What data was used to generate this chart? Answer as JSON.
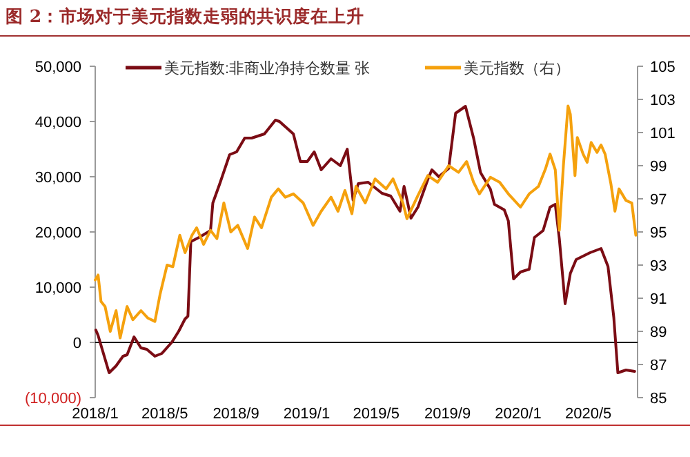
{
  "chart_data": {
    "type": "line",
    "title": "图 2：市场对于美元指数走弱的共识度在上升",
    "xlim": [
      "2018-01-01",
      "2020-07-25"
    ],
    "xticks": [
      {
        "value": "2018-01",
        "label": "2018/1"
      },
      {
        "value": "2018-05",
        "label": "2018/5"
      },
      {
        "value": "2018-09",
        "label": "2018/9"
      },
      {
        "value": "2019-01",
        "label": "2019/1"
      },
      {
        "value": "2019-05",
        "label": "2019/5"
      },
      {
        "value": "2019-09",
        "label": "2019/9"
      },
      {
        "value": "2020-01",
        "label": "2020/1"
      },
      {
        "value": "2020-05",
        "label": "2020/5"
      }
    ],
    "ylim": [
      -10000,
      50000
    ],
    "yticks": [
      {
        "value": -10000,
        "label": "(10,000)"
      },
      {
        "value": 0,
        "label": "0"
      },
      {
        "value": 10000,
        "label": "10,000"
      },
      {
        "value": 20000,
        "label": "20,000"
      },
      {
        "value": 30000,
        "label": "30,000"
      },
      {
        "value": 40000,
        "label": "40,000"
      },
      {
        "value": 50000,
        "label": "50,000"
      }
    ],
    "y2lim": [
      85,
      105
    ],
    "y2ticks": [
      85,
      87,
      89,
      91,
      93,
      95,
      97,
      99,
      101,
      103,
      105
    ],
    "grid": false,
    "legend": "top",
    "marker": "none",
    "line_style": "solid",
    "ref_lines": [
      {
        "axis": "y",
        "value": 0,
        "color": "#000000"
      }
    ],
    "series": [
      {
        "name": "美元指数:非商业净持仓数量 张",
        "color": "#7b0c14",
        "x": [
          "2018-01-02",
          "2018-01-06",
          "2018-01-25",
          "2018-02-06",
          "2018-02-18",
          "2018-02-25",
          "2018-03-09",
          "2018-03-21",
          "2018-03-31",
          "2018-04-14",
          "2018-04-26",
          "2018-05-13",
          "2018-05-25",
          "2018-06-05",
          "2018-06-10",
          "2018-06-15",
          "2018-06-29",
          "2018-07-19",
          "2018-07-23",
          "2018-08-04",
          "2018-08-21",
          "2018-09-02",
          "2018-09-16",
          "2018-09-28",
          "2018-10-20",
          "2018-11-08",
          "2018-11-15",
          "2018-12-09",
          "2018-12-21",
          "2019-01-02",
          "2019-01-14",
          "2019-01-26",
          "2019-02-12",
          "2019-02-28",
          "2019-03-12",
          "2019-03-22",
          "2019-03-31",
          "2019-04-17",
          "2019-05-11",
          "2019-05-26",
          "2019-06-11",
          "2019-06-18",
          "2019-06-30",
          "2019-07-12",
          "2019-07-29",
          "2019-08-05",
          "2019-08-17",
          "2019-09-03",
          "2019-09-15",
          "2019-10-02",
          "2019-10-16",
          "2019-10-28",
          "2019-11-14",
          "2019-11-21",
          "2019-12-08",
          "2019-12-15",
          "2019-12-24",
          "2020-01-05",
          "2020-01-20",
          "2020-01-29",
          "2020-02-13",
          "2020-02-25",
          "2020-03-05",
          "2020-03-12",
          "2020-03-22",
          "2020-03-31",
          "2020-04-10",
          "2020-05-04",
          "2020-05-23",
          "2020-06-04",
          "2020-06-14",
          "2020-06-21",
          "2020-07-05",
          "2020-07-20"
        ],
        "values": [
          2250,
          1250,
          -5500,
          -4250,
          -2500,
          -2250,
          1000,
          -1000,
          -1250,
          -2500,
          -2000,
          0,
          2000,
          4250,
          4750,
          18250,
          19000,
          20250,
          25250,
          28750,
          34000,
          34500,
          37000,
          37000,
          37750,
          40250,
          40000,
          37750,
          32750,
          32750,
          34500,
          31250,
          33250,
          32000,
          35000,
          25750,
          28750,
          29000,
          27000,
          26500,
          23750,
          28250,
          22500,
          24500,
          29500,
          31250,
          30000,
          31500,
          41500,
          42750,
          37000,
          30750,
          27750,
          25000,
          24000,
          22000,
          11500,
          12750,
          13250,
          19000,
          20250,
          24500,
          25000,
          18750,
          7000,
          12500,
          15000,
          16250,
          17000,
          13750,
          4500,
          -5500,
          -5000,
          -5250
        ]
      },
      {
        "name": "美元指数（右）",
        "color": "#f5a10d",
        "axis": "y2",
        "x": [
          "2018-01-01",
          "2018-01-06",
          "2018-01-11",
          "2018-01-18",
          "2018-01-27",
          "2018-02-06",
          "2018-02-13",
          "2018-02-25",
          "2018-03-07",
          "2018-03-21",
          "2018-04-02",
          "2018-04-14",
          "2018-04-23",
          "2018-05-05",
          "2018-05-15",
          "2018-05-27",
          "2018-06-05",
          "2018-06-17",
          "2018-06-25",
          "2018-07-07",
          "2018-07-19",
          "2018-07-30",
          "2018-08-11",
          "2018-08-23",
          "2018-09-04",
          "2018-09-21",
          "2018-10-03",
          "2018-10-15",
          "2018-11-01",
          "2018-11-13",
          "2018-11-25",
          "2018-12-09",
          "2018-12-26",
          "2019-01-12",
          "2019-01-26",
          "2019-02-12",
          "2019-02-24",
          "2019-03-08",
          "2019-03-20",
          "2019-03-27",
          "2019-04-12",
          "2019-04-29",
          "2019-05-18",
          "2019-05-30",
          "2019-06-16",
          "2019-06-23",
          "2019-07-12",
          "2019-07-29",
          "2019-08-15",
          "2019-09-03",
          "2019-09-20",
          "2019-10-04",
          "2019-10-16",
          "2019-10-26",
          "2019-11-14",
          "2019-11-30",
          "2019-12-15",
          "2020-01-05",
          "2020-01-20",
          "2020-02-05",
          "2020-02-17",
          "2020-02-25",
          "2020-03-05",
          "2020-03-12",
          "2020-03-19",
          "2020-03-27",
          "2020-03-31",
          "2020-04-08",
          "2020-04-12",
          "2020-04-22",
          "2020-04-29",
          "2020-05-06",
          "2020-05-16",
          "2020-05-23",
          "2020-05-30",
          "2020-06-09",
          "2020-06-16",
          "2020-06-23",
          "2020-07-05",
          "2020-07-15",
          "2020-07-22"
        ],
        "values": [
          92.1,
          92.4,
          90.8,
          90.5,
          89.0,
          90.25,
          88.6,
          90.5,
          89.7,
          90.25,
          89.8,
          89.6,
          91.25,
          93.0,
          92.9,
          94.8,
          93.75,
          94.8,
          95.25,
          94.25,
          95.1,
          94.6,
          96.75,
          95.0,
          95.4,
          94.0,
          95.9,
          95.25,
          97.1,
          97.6,
          97.1,
          97.3,
          96.75,
          95.4,
          96.25,
          97.1,
          96.25,
          97.5,
          96.1,
          97.75,
          96.75,
          98.2,
          97.6,
          98.2,
          96.75,
          95.8,
          97.2,
          98.4,
          98.0,
          99.0,
          98.6,
          99.25,
          98.0,
          97.3,
          98.3,
          98.0,
          97.3,
          96.5,
          97.3,
          97.75,
          98.8,
          99.7,
          98.75,
          95.1,
          99.0,
          102.6,
          102.1,
          98.4,
          100.7,
          99.7,
          99.2,
          100.4,
          99.8,
          100.25,
          99.7,
          97.9,
          96.25,
          97.6,
          96.9,
          96.75,
          94.8
        ]
      }
    ]
  }
}
